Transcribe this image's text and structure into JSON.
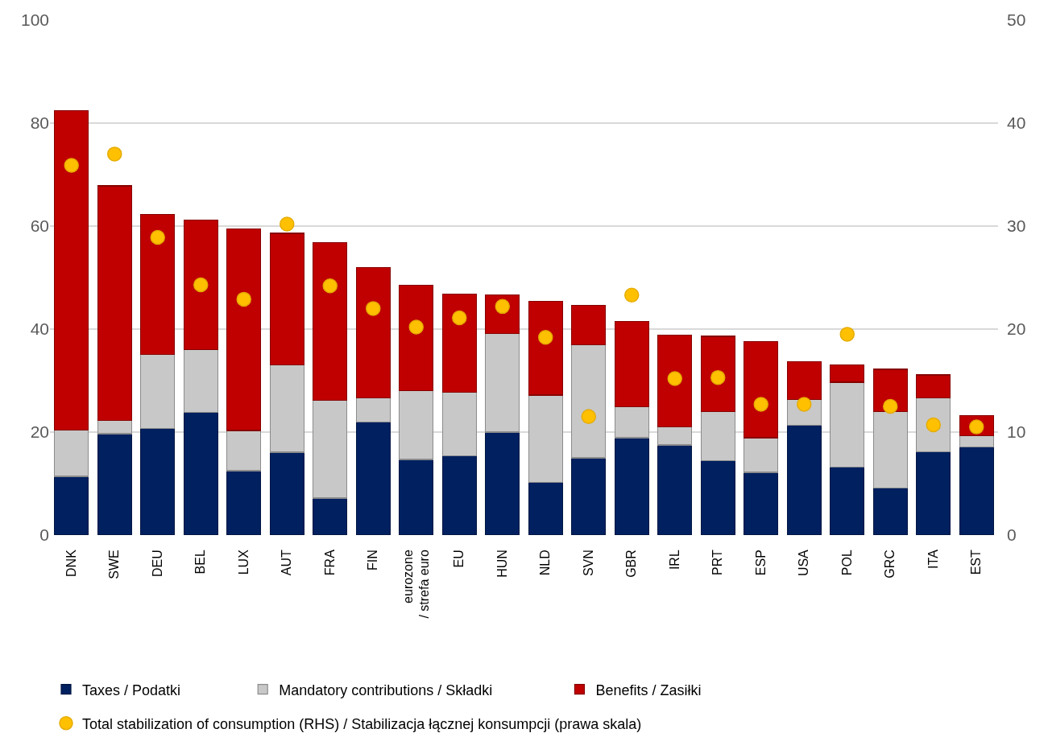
{
  "chart_data": {
    "type": "bar",
    "stacked": true,
    "categories": [
      "DNK",
      "SWE",
      "DEU",
      "BEL",
      "LUX",
      "AUT",
      "FRA",
      "FIN",
      "eurozone\n/ strefa euro",
      "EU",
      "HUN",
      "NLD",
      "SVN",
      "GBR",
      "IRL",
      "PRT",
      "ESP",
      "USA",
      "POL",
      "GRC",
      "ITA",
      "EST"
    ],
    "series": [
      {
        "name": "Taxes / Podatki",
        "color": "#002060",
        "values": [
          11.4,
          19.7,
          20.7,
          23.8,
          12.5,
          16.1,
          7.2,
          21.9,
          14.7,
          15.4,
          20.0,
          10.2,
          15.0,
          18.9,
          17.5,
          14.4,
          12.2,
          21.3,
          13.2,
          9.1,
          16.2,
          17.1
        ]
      },
      {
        "name": "Mandatory contributions / Składki",
        "color": "#c8c8c8",
        "values": [
          9.0,
          2.6,
          14.4,
          12.2,
          7.8,
          17.0,
          19.0,
          4.8,
          13.3,
          12.3,
          19.1,
          17.0,
          22.0,
          6.0,
          3.5,
          9.6,
          6.7,
          5.0,
          16.5,
          14.9,
          10.4,
          2.2
        ]
      },
      {
        "name": "Benefits / Zasiłki",
        "color": "#c00000",
        "values": [
          62.0,
          45.5,
          27.2,
          25.2,
          39.1,
          25.5,
          30.6,
          25.2,
          20.5,
          19.1,
          7.6,
          18.2,
          7.6,
          16.6,
          17.8,
          14.6,
          18.7,
          7.4,
          3.3,
          8.2,
          4.5,
          3.9
        ]
      },
      {
        "name": "Total stabilization of consumption (RHS) / Stabilizacja łącznej konsumpcji (prawa skala)",
        "type": "scatter",
        "axis": "y2",
        "marker": "circle",
        "color": "#ffc000",
        "values": [
          35.9,
          37.0,
          28.9,
          24.3,
          22.9,
          30.2,
          24.2,
          22.0,
          20.2,
          21.1,
          22.2,
          19.2,
          11.5,
          23.3,
          15.2,
          15.3,
          12.7,
          12.7,
          19.5,
          12.5,
          10.7,
          10.5
        ]
      }
    ],
    "ylim": [
      0,
      100
    ],
    "yticks": [
      0,
      20,
      40,
      60,
      80,
      100
    ],
    "y2lim": [
      0,
      50
    ],
    "y2ticks": [
      0,
      10,
      20,
      30,
      40,
      50
    ],
    "grid": "y",
    "legend": "bottom"
  }
}
